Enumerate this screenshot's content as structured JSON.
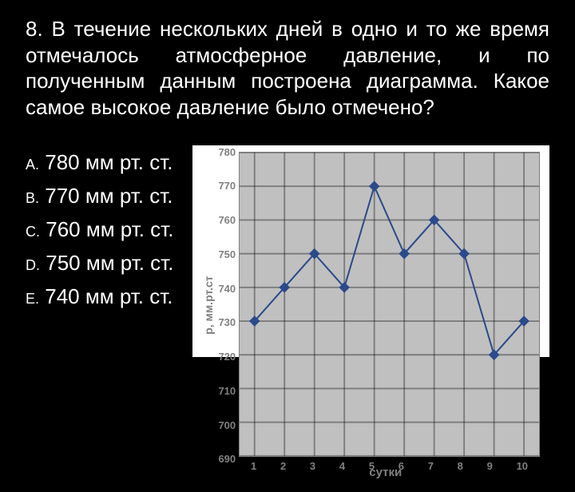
{
  "question": "8. В течение нескольких дней в одно и то же время отмечалось атмосферное давление, и по полученным данным построена диаграмма. Какое самое высокое давление было отмечено?",
  "options": {
    "a": {
      "letter": "A.",
      "text": "780 мм рт. ст."
    },
    "b": {
      "letter": "B.",
      "text": "770 мм рт. ст."
    },
    "c": {
      "letter": "C.",
      "text": "760 мм рт. ст."
    },
    "d": {
      "letter": "D.",
      "text": "750 мм рт. ст."
    },
    "e": {
      "letter": "E.",
      "text": "740 мм рт. ст."
    }
  },
  "chart": {
    "type": "line",
    "x_label": "сутки",
    "y_label": "р, мм.рт.ст",
    "x_categories": [
      "1",
      "2",
      "3",
      "4",
      "5",
      "6",
      "7",
      "8",
      "9",
      "10"
    ],
    "y_ticks": [
      780,
      770,
      760,
      750,
      740,
      730,
      720,
      710,
      700,
      690
    ],
    "ylim": [
      690,
      780
    ],
    "xlim": [
      1,
      10
    ],
    "values": [
      730,
      740,
      750,
      740,
      770,
      750,
      760,
      750,
      720,
      730
    ],
    "line_color": "#2a4a8a",
    "marker": "diamond",
    "marker_size": 5,
    "grid_color": "#000000",
    "plot_bg": "#c0c0c0",
    "axis_text_color": "#808080",
    "title_fontsize": 26,
    "tick_fontsize": 13
  }
}
